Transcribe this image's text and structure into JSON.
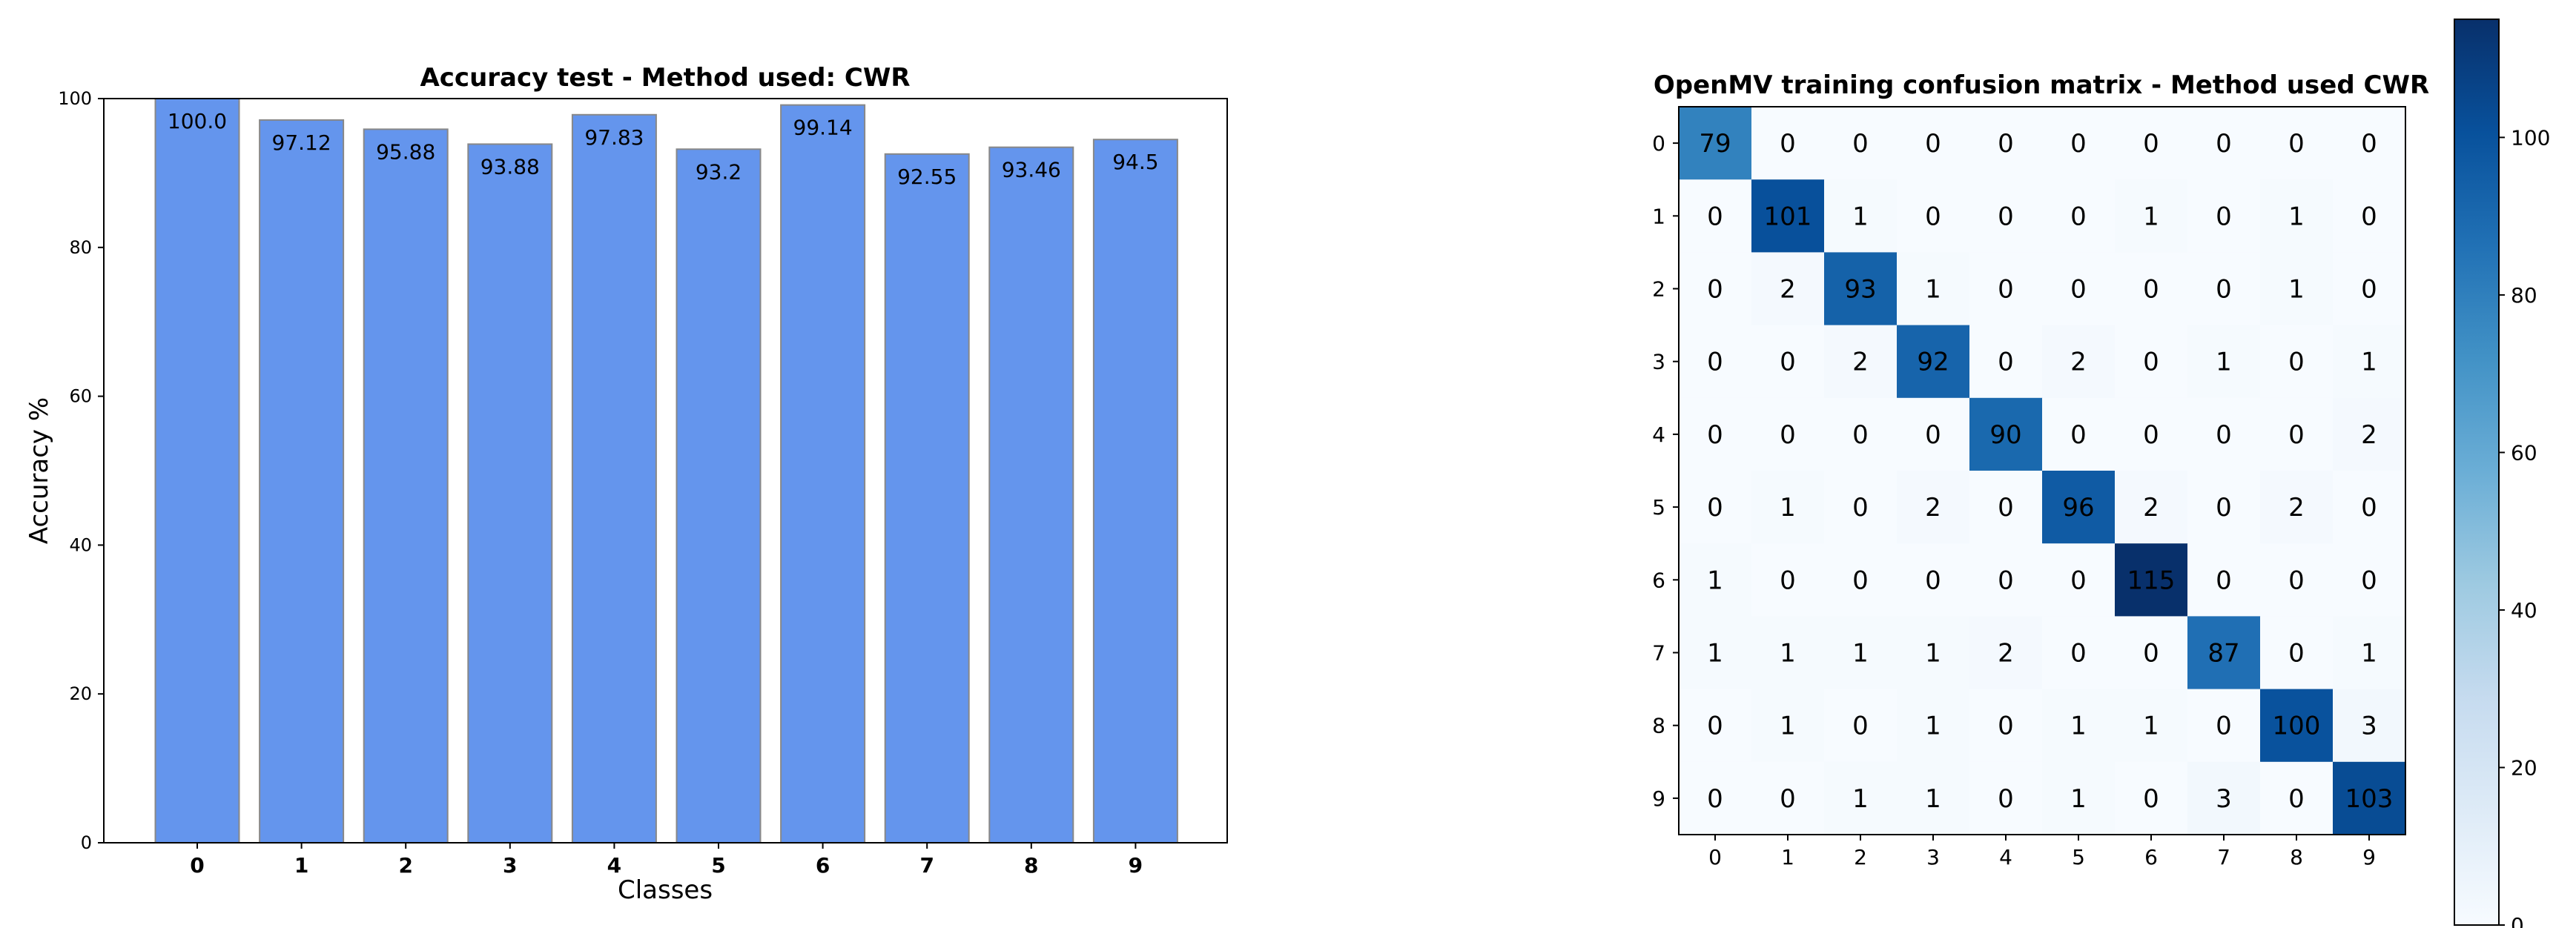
{
  "chart_data": [
    {
      "type": "bar",
      "title": "Accuracy test - Method used: CWR",
      "xlabel": "Classes",
      "ylabel": "Accuracy %",
      "categories": [
        "0",
        "1",
        "2",
        "3",
        "4",
        "5",
        "6",
        "7",
        "8",
        "9"
      ],
      "values": [
        100.0,
        97.12,
        95.88,
        93.88,
        97.83,
        93.2,
        99.14,
        92.55,
        93.46,
        94.5
      ],
      "value_labels": [
        "100.0",
        "97.12",
        "95.88",
        "93.88",
        "97.83",
        "93.2",
        "99.14",
        "92.55",
        "93.46",
        "94.5"
      ],
      "ylim": [
        0,
        100
      ],
      "yticks": [
        0,
        20,
        40,
        60,
        80,
        100
      ],
      "grid": false,
      "bar_color": "#6495ed"
    },
    {
      "type": "heatmap",
      "title": "OpenMV training confusion matrix - Method used CWR",
      "row_labels": [
        "0",
        "1",
        "2",
        "3",
        "4",
        "5",
        "6",
        "7",
        "8",
        "9"
      ],
      "col_labels": [
        "0",
        "1",
        "2",
        "3",
        "4",
        "5",
        "6",
        "7",
        "8",
        "9"
      ],
      "matrix": [
        [
          79,
          0,
          0,
          0,
          0,
          0,
          0,
          0,
          0,
          0
        ],
        [
          0,
          101,
          1,
          0,
          0,
          0,
          1,
          0,
          1,
          0
        ],
        [
          0,
          2,
          93,
          1,
          0,
          0,
          0,
          0,
          1,
          0
        ],
        [
          0,
          0,
          2,
          92,
          0,
          2,
          0,
          1,
          0,
          1
        ],
        [
          0,
          0,
          0,
          0,
          90,
          0,
          0,
          0,
          0,
          2
        ],
        [
          0,
          1,
          0,
          2,
          0,
          96,
          2,
          0,
          2,
          0
        ],
        [
          1,
          0,
          0,
          0,
          0,
          0,
          115,
          0,
          0,
          0
        ],
        [
          1,
          1,
          1,
          1,
          2,
          0,
          0,
          87,
          0,
          1
        ],
        [
          0,
          1,
          0,
          1,
          0,
          1,
          1,
          0,
          100,
          3
        ],
        [
          0,
          0,
          1,
          1,
          0,
          1,
          0,
          3,
          0,
          103
        ]
      ],
      "colormap": "Blues",
      "vmin": 0,
      "vmax": 115,
      "colorbar_ticks": [
        0,
        20,
        40,
        60,
        80,
        100
      ]
    }
  ]
}
